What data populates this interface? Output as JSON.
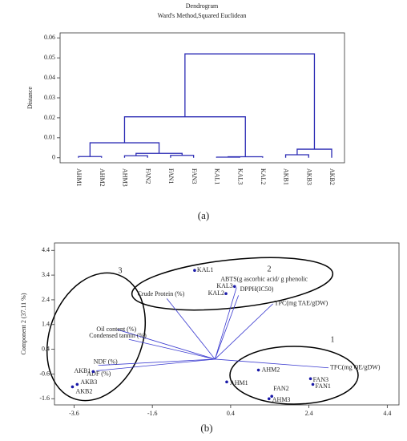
{
  "chart_data": [
    {
      "type": "dendrogram",
      "title": "Dendrogram",
      "subtitle": "Ward's Method,Squared Euclidean",
      "ylabel": "Distance",
      "panel_label": "(a)",
      "color": "#2a2ab4",
      "leaves": [
        "AHM1",
        "AHM2",
        "AHM3",
        "FAN2",
        "FAN1",
        "FAN3",
        "KAL1",
        "KAL3",
        "KAL2",
        "AKB1",
        "AKB3",
        "AKB2"
      ],
      "merges": [
        {
          "left": 0,
          "right": 1,
          "height": 0.0006
        },
        {
          "left": 2,
          "right": 3,
          "height": 0.001
        },
        {
          "left": 4,
          "right": 5,
          "height": 0.0012
        },
        {
          "left": 13,
          "right": 14,
          "height": 0.0022
        },
        {
          "left": 12,
          "right": 15,
          "height": 0.0075
        },
        {
          "left": 6,
          "right": 7,
          "height": 0.0003
        },
        {
          "left": 17,
          "right": 8,
          "height": 0.0005
        },
        {
          "left": 16,
          "right": 18,
          "height": 0.0205
        },
        {
          "left": 9,
          "right": 10,
          "height": 0.0015
        },
        {
          "left": 20,
          "right": 11,
          "height": 0.0043
        },
        {
          "left": 19,
          "right": 21,
          "height": 0.052
        }
      ],
      "ylim": [
        -0.0025,
        0.0625
      ],
      "yticks": [
        0,
        0.01,
        0.02,
        0.03,
        0.04,
        0.05,
        0.06
      ]
    },
    {
      "type": "biplot",
      "ylabel": "Component 2 (37.11 %)",
      "panel_label": "(b)",
      "point_color": "#1a1aa8",
      "vector_color": "#3a3ad0",
      "points": {
        "labels": [
          "KAL1",
          "KAL3",
          "KAL2",
          "AHM2",
          "AHM1",
          "FAN2",
          "AHM3",
          "FAN3",
          "FAN1",
          "AKB1",
          "AKB3",
          "AKB2"
        ],
        "x": [
          -0.52,
          0.5,
          0.28,
          1.11,
          0.3,
          1.45,
          1.38,
          2.44,
          2.5,
          -3.11,
          -3.52,
          -3.64
        ],
        "y": [
          3.59,
          2.94,
          2.65,
          -0.44,
          -0.92,
          -1.5,
          -1.6,
          -0.79,
          -1.02,
          -0.5,
          -1.02,
          -1.12
        ]
      },
      "vectors": {
        "labels": [
          "Crude Protein (%)",
          "ABTS(g ascorbic acid/ g phenolic",
          "DPPH(IC50)",
          "TPC(mg TAE/gDW)",
          "Oil content (%)",
          "Condensed tannin (%)",
          "NDF (%)",
          "ADF (%)",
          "TFC(mg QE/gDW)"
        ],
        "x": [
          -1.23,
          0.55,
          0.6,
          1.48,
          -2.5,
          -2.2,
          -2.98,
          -3.03,
          2.9
        ],
        "y": [
          2.45,
          2.9,
          2.58,
          2.24,
          1.2,
          0.8,
          -0.25,
          -0.47,
          -0.35
        ]
      },
      "annotations": [
        "1",
        "2",
        "3"
      ],
      "xlim": [
        -4.1,
        4.7
      ],
      "xticks": [
        -3.6,
        -1.6,
        0.4,
        2.4,
        4.4
      ],
      "ylim": [
        -1.85,
        4.7
      ],
      "yticks": [
        -1.6,
        -0.6,
        0.4,
        1.4,
        2.4,
        3.4,
        4.4
      ]
    }
  ]
}
